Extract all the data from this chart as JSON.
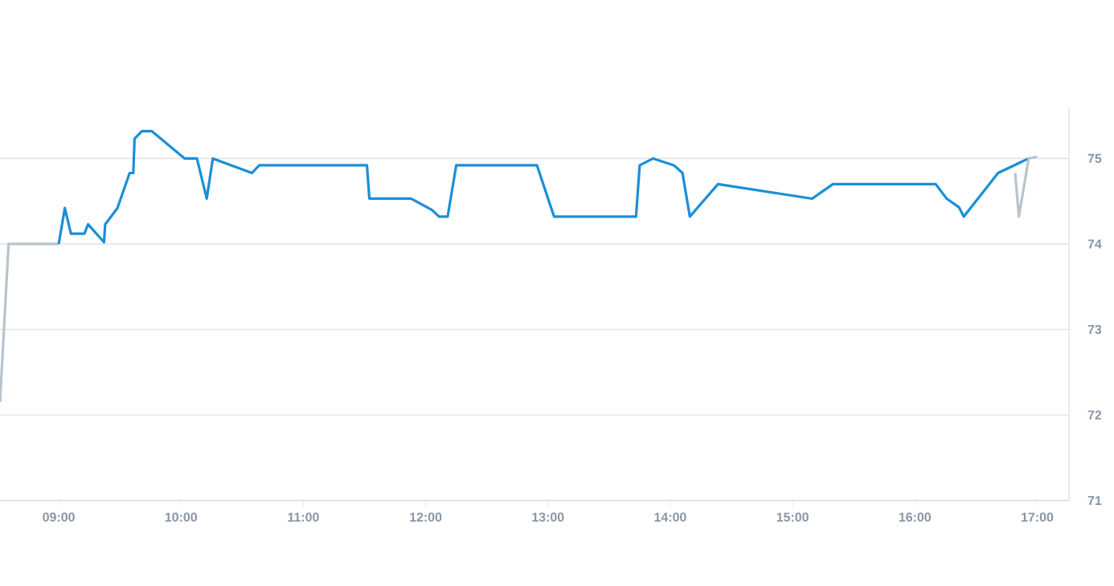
{
  "chart_data": {
    "type": "line",
    "marker": "none",
    "grid": "y",
    "xlim": [
      8.52,
      17.26
    ],
    "ylim": [
      71,
      75.6
    ],
    "xticks": [
      {
        "value": 9,
        "label": "09:00"
      },
      {
        "value": 10,
        "label": "10:00"
      },
      {
        "value": 11,
        "label": "11:00"
      },
      {
        "value": 12,
        "label": "12:00"
      },
      {
        "value": 13,
        "label": "13:00"
      },
      {
        "value": 14,
        "label": "14:00"
      },
      {
        "value": 15,
        "label": "15:00"
      },
      {
        "value": 16,
        "label": "16:00"
      },
      {
        "value": 17,
        "label": "17:00"
      }
    ],
    "yticks": [
      71,
      72,
      73,
      74,
      75
    ],
    "series": [
      {
        "color": "#b8c4cc",
        "x": [
          8.52,
          8.59,
          9.0
        ],
        "values": [
          72.15,
          74.0,
          74.0
        ]
      },
      {
        "color": "#1a8fd8",
        "x": [
          9.0,
          9.05,
          9.1,
          9.21,
          9.24,
          9.37,
          9.38,
          9.48,
          9.58,
          9.61,
          9.62,
          9.68,
          9.76,
          10.03,
          10.13,
          10.21,
          10.26,
          10.58,
          10.64,
          11.52,
          11.54,
          11.88,
          12.05,
          12.11,
          12.18,
          12.25,
          12.91,
          13.05,
          13.72,
          13.75,
          13.86,
          14.03,
          14.1,
          14.16,
          14.39,
          15.16,
          15.33,
          16.17,
          16.26,
          16.36,
          16.4,
          16.68,
          16.93
        ],
        "values": [
          74.0,
          74.42,
          74.12,
          74.12,
          74.23,
          74.02,
          74.23,
          74.42,
          74.83,
          74.83,
          75.23,
          75.32,
          75.32,
          75.0,
          75.0,
          74.53,
          75.0,
          74.83,
          74.92,
          74.92,
          74.53,
          74.53,
          74.4,
          74.32,
          74.32,
          74.92,
          74.92,
          74.32,
          74.32,
          74.92,
          75.0,
          74.92,
          74.83,
          74.32,
          74.7,
          74.53,
          74.7,
          74.7,
          74.53,
          74.43,
          74.32,
          74.83,
          75.0
        ]
      },
      {
        "color": "#b8c4cc",
        "x": [
          16.82,
          16.85,
          16.93,
          17.0
        ],
        "values": [
          74.83,
          74.32,
          75.0,
          75.02
        ]
      }
    ]
  }
}
